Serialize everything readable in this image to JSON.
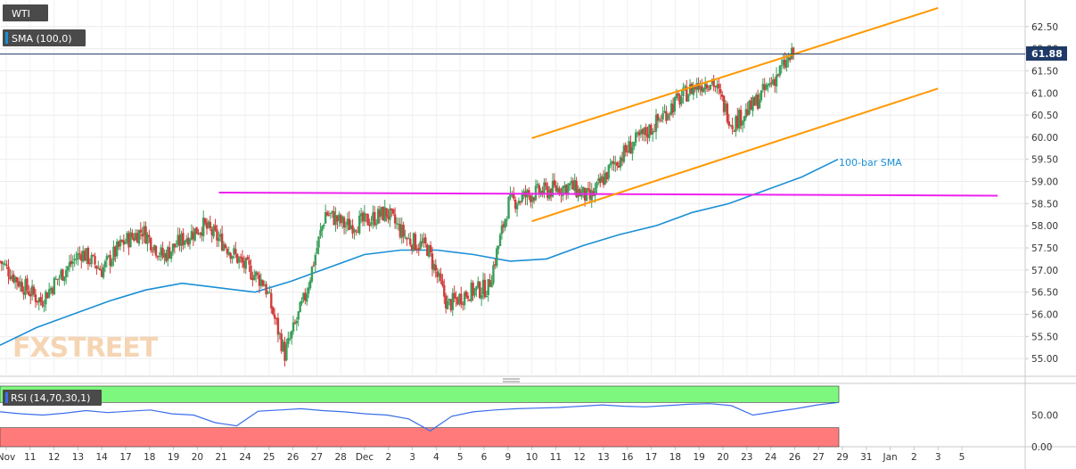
{
  "header": {
    "symbol": "WTI",
    "sma_label": "SMA (100,0)",
    "last_price": "61.88"
  },
  "watermark": "FXSTREET",
  "annotations": {
    "sma_text": "100-bar SMA"
  },
  "rsi": {
    "label": "RSI (14,70,30,1)",
    "ticks": [
      "50.00",
      "0.00"
    ],
    "overbought": 70,
    "oversold": 30,
    "overbought_color": "#7ef77e",
    "oversold_color": "#ff7b7b",
    "line_color": "#3c6ee8"
  },
  "colors": {
    "up_candle": "#3a9e5a",
    "down_candle": "#d23b3b",
    "sma": "#1a8fd6",
    "channel": "#ff9800",
    "support": "#ee22ee",
    "price_line": "#1f3a66"
  },
  "chart_data": {
    "type": "candlestick",
    "y_ticks": [
      "62.50",
      "62.00",
      "61.50",
      "61.00",
      "60.50",
      "60.00",
      "59.50",
      "59.00",
      "58.50",
      "58.00",
      "57.50",
      "57.00",
      "56.50",
      "56.00",
      "55.50",
      "55.00"
    ],
    "ylim": [
      54.6,
      63.1
    ],
    "x_labels": [
      "Nov",
      "11",
      "12",
      "13",
      "14",
      "17",
      "18",
      "19",
      "20",
      "21",
      "24",
      "25",
      "26",
      "27",
      "28",
      "Dec",
      "2",
      "3",
      "4",
      "5",
      "6",
      "9",
      "10",
      "11",
      "12",
      "13",
      "16",
      "17",
      "18",
      "19",
      "20",
      "23",
      "24",
      "26",
      "27",
      "29",
      "31",
      "Jan",
      "2",
      "3",
      "5"
    ],
    "sessions_with_data": 33,
    "close_path": [
      57.2,
      56.7,
      56.3,
      56.9,
      57.4,
      57.0,
      57.6,
      57.9,
      57.3,
      57.7,
      58.0,
      57.6,
      57.1,
      56.7,
      55.1,
      56.4,
      58.3,
      58.0,
      58.1,
      58.3,
      57.7,
      57.5,
      56.2,
      56.5,
      56.6,
      58.5,
      58.7,
      58.8,
      58.9,
      58.6,
      59.3,
      59.8,
      60.2,
      60.7,
      61.1,
      61.3,
      60.3,
      60.7,
      61.3,
      61.88
    ],
    "sma_path": [
      55.3,
      55.7,
      56.0,
      56.3,
      56.55,
      56.7,
      56.6,
      56.5,
      56.75,
      57.05,
      57.35,
      57.45,
      57.45,
      57.35,
      57.2,
      57.25,
      57.55,
      57.8,
      58.0,
      58.3,
      58.5,
      58.8,
      59.1,
      59.5
    ],
    "sma_level_last": 59.6,
    "channel": {
      "upper": [
        [
          22.0,
          59.98
        ],
        [
          39.0,
          62.92
        ]
      ],
      "lower": [
        [
          22.0,
          58.1
        ],
        [
          39.0,
          61.1
        ]
      ]
    },
    "support_line": [
      [
        8.9,
        58.75
      ],
      [
        41.5,
        58.68
      ]
    ],
    "rsi_path": [
      55,
      52,
      50,
      53,
      57,
      54,
      56,
      58,
      52,
      50,
      38,
      33,
      56,
      58,
      60,
      57,
      55,
      52,
      50,
      44,
      25,
      48,
      55,
      58,
      60,
      61,
      62,
      64,
      66,
      64,
      63,
      65,
      67,
      68,
      65,
      50,
      55,
      60,
      66,
      70
    ]
  }
}
